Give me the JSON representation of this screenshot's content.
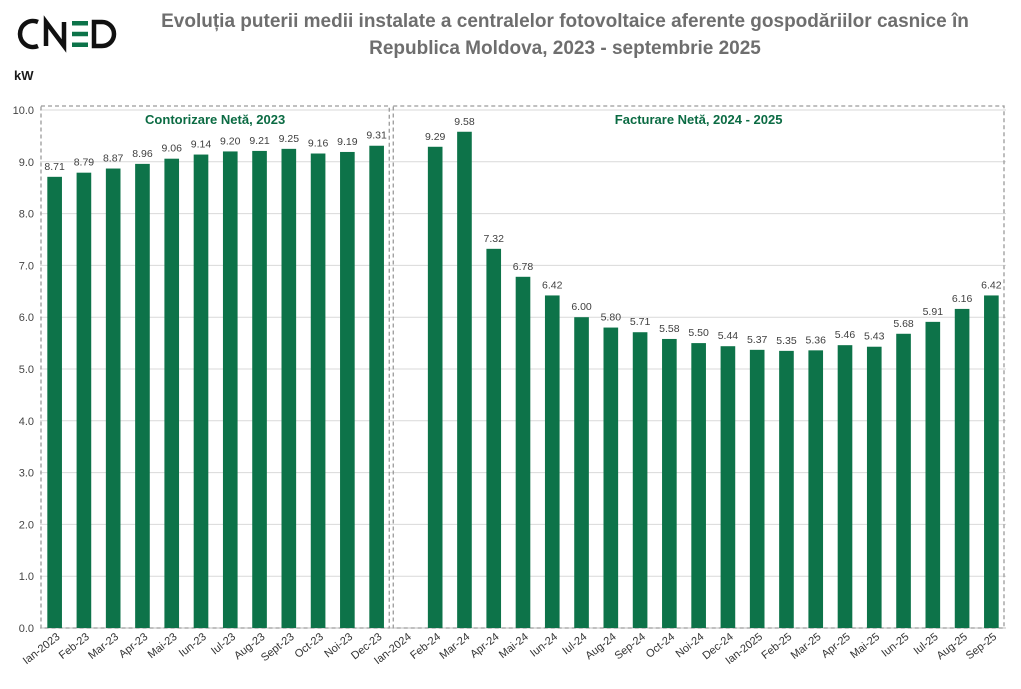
{
  "header": {
    "logo_text": "CNED",
    "title_line1": "Evoluția puterii medii instalate a centralelor fotovoltaice aferente gospodăriilor casnice în",
    "title_line2": "Republica Moldova, 2023 - septembrie 2025"
  },
  "colors": {
    "bar": "#0d7349",
    "section_text": "#0b6b43",
    "title": "#6e6e6e",
    "grid": "#d9d9d9",
    "section_border": "#9a9a9a"
  },
  "chart_data": {
    "type": "bar",
    "title": "Evoluția puterii medii instalate a centralelor fotovoltaice aferente gospodăriilor casnice în Republica Moldova, 2023 - septembrie 2025",
    "xlabel": "",
    "ylabel": "kW",
    "ylim": [
      0,
      10
    ],
    "yticks": [
      "0.0",
      "1.0",
      "2.0",
      "3.0",
      "4.0",
      "5.0",
      "6.0",
      "7.0",
      "8.0",
      "9.0",
      "10.0"
    ],
    "grid": true,
    "categories": [
      "Ian-2023",
      "Feb-23",
      "Mar-23",
      "Apr-23",
      "Mai-23",
      "Iun-23",
      "Iul-23",
      "Aug-23",
      "Sept-23",
      "Oct-23",
      "Noi-23",
      "Dec-23",
      "Ian-2024",
      "Feb-24",
      "Mar-24",
      "Apr-24",
      "Mai-24",
      "Iun-24",
      "Iul-24",
      "Aug-24",
      "Sep-24",
      "Oct-24",
      "Noi-24",
      "Dec-24",
      "Ian-2025",
      "Feb-25",
      "Mar-25",
      "Apr-25",
      "Mai-25",
      "Iun-25",
      "Iul-25",
      "Aug-25",
      "Sep-25"
    ],
    "values": [
      8.71,
      8.79,
      8.87,
      8.96,
      9.06,
      9.14,
      9.2,
      9.21,
      9.25,
      9.16,
      9.19,
      9.31,
      null,
      9.29,
      9.58,
      7.32,
      6.78,
      6.42,
      6.0,
      5.8,
      5.71,
      5.58,
      5.5,
      5.44,
      5.37,
      5.35,
      5.36,
      5.46,
      5.43,
      5.68,
      5.91,
      6.16,
      6.42
    ],
    "value_labels": [
      "8.71",
      "8.79",
      "8.87",
      "8.96",
      "9.06",
      "9.14",
      "9.20",
      "9.21",
      "9.25",
      "9.16",
      "9.19",
      "9.31",
      "",
      "9.29",
      "9.58",
      "7.32",
      "6.78",
      "6.42",
      "6.00",
      "5.80",
      "5.71",
      "5.58",
      "5.50",
      "5.44",
      "5.37",
      "5.35",
      "5.36",
      "5.46",
      "5.43",
      "5.68",
      "5.91",
      "6.16",
      "6.42"
    ],
    "annotations": [
      {
        "text": "Contorizare Netă, 2023",
        "from_category": 0,
        "to_category": 11
      },
      {
        "text": "Facturare Netă, 2024 - 2025",
        "from_category": 12,
        "to_category": 32
      }
    ]
  }
}
